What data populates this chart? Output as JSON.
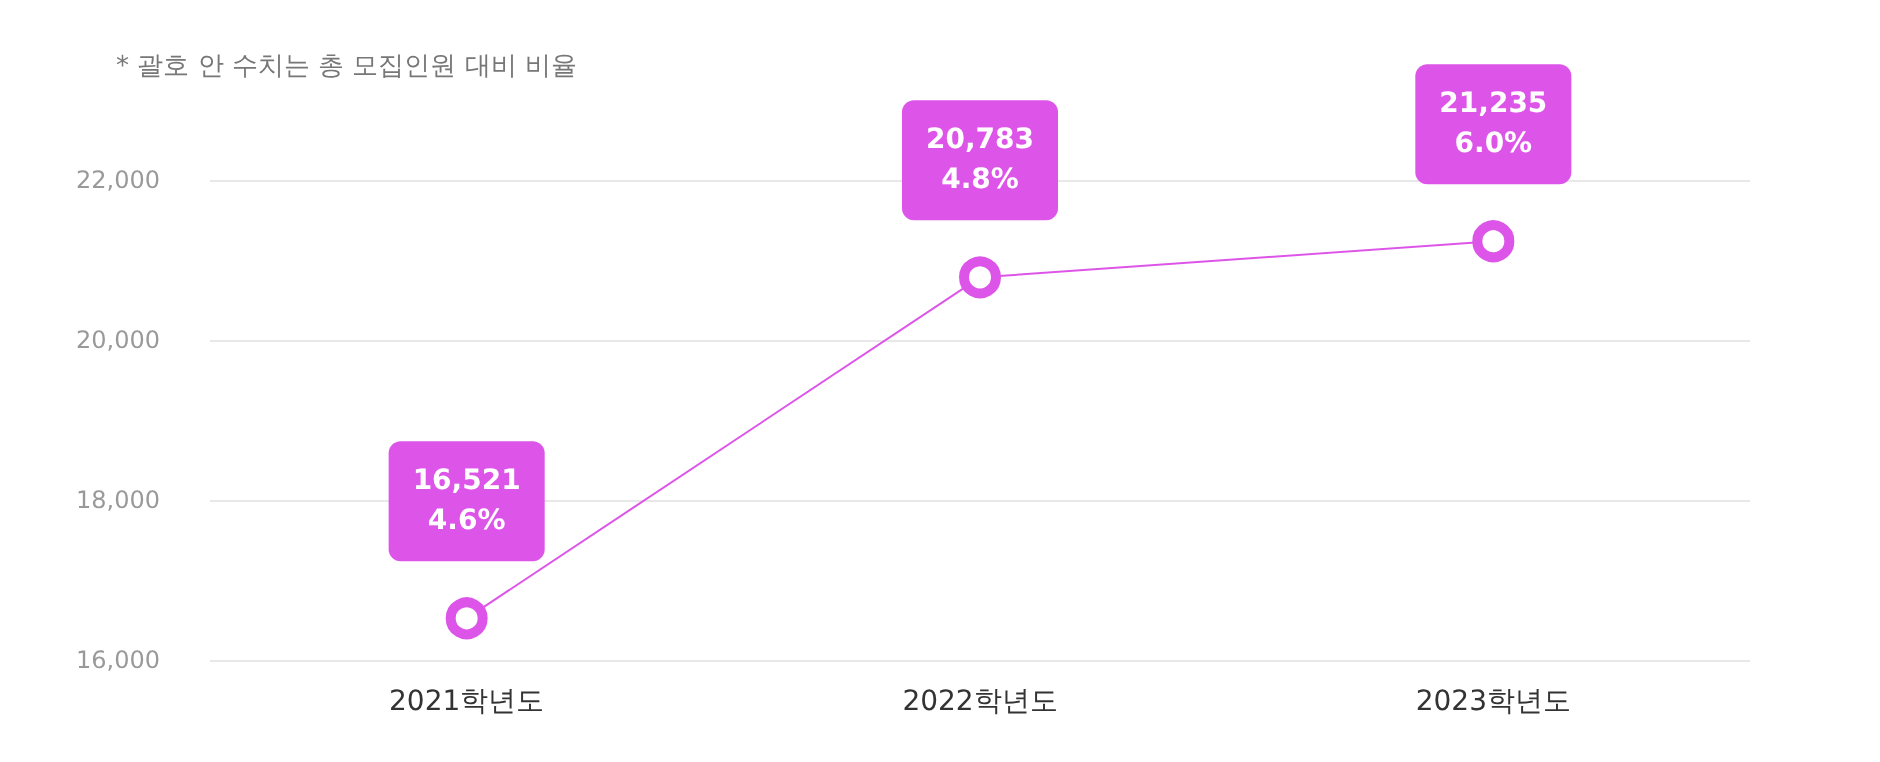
{
  "chart_data": {
    "type": "line",
    "annotations": [
      "* 괄호 안 수치는 총 모집인원 대비 비율"
    ],
    "categories": [
      "2021학년도",
      "2022학년도",
      "2023학년도"
    ],
    "series": [
      {
        "color": "#dd55e8",
        "values": [
          16521,
          20783,
          21235
        ],
        "value_labels": [
          "16,521\n4.6%",
          "20,783\n4.8%",
          "21,235\n6.0%"
        ]
      }
    ],
    "ylim": [
      16000,
      22000
    ],
    "yticks": [
      {
        "value": 16000,
        "label": "16,000"
      },
      {
        "value": 18000,
        "label": "18,000"
      },
      {
        "value": 20000,
        "label": "20,000"
      },
      {
        "value": 22000,
        "label": "22,000"
      }
    ],
    "grid": "y",
    "marker": "circle",
    "line_style": "solid"
  }
}
